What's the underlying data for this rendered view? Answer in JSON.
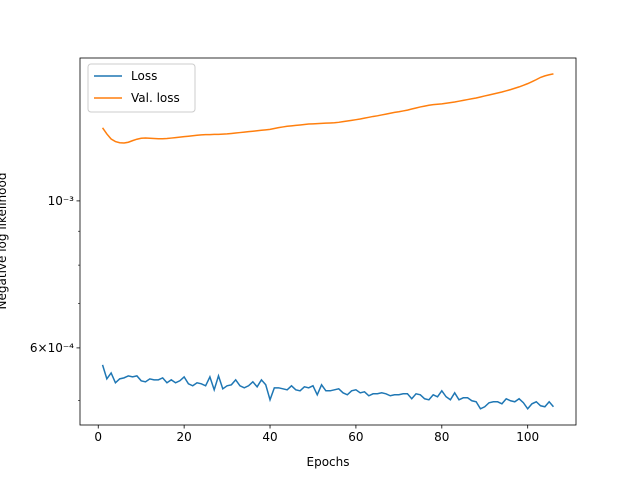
{
  "chart_data": {
    "type": "line",
    "xlabel": "Epochs",
    "ylabel": "Negative log likelihood",
    "x": [
      1,
      2,
      3,
      4,
      5,
      6,
      7,
      8,
      9,
      10,
      11,
      12,
      13,
      14,
      15,
      16,
      17,
      18,
      19,
      20,
      21,
      22,
      23,
      24,
      25,
      26,
      27,
      28,
      29,
      30,
      31,
      32,
      33,
      34,
      35,
      36,
      37,
      38,
      39,
      40,
      41,
      42,
      43,
      44,
      45,
      46,
      47,
      48,
      49,
      50,
      51,
      52,
      53,
      54,
      55,
      56,
      57,
      58,
      59,
      60,
      61,
      62,
      63,
      64,
      65,
      66,
      67,
      68,
      69,
      70,
      71,
      72,
      73,
      74,
      75,
      76,
      77,
      78,
      79,
      80,
      81,
      82,
      83,
      84,
      85,
      86,
      87,
      88,
      89,
      90,
      91,
      92,
      93,
      94,
      95,
      96,
      97,
      98,
      99,
      100,
      101,
      102,
      103,
      104,
      105,
      106
    ],
    "series": [
      {
        "name": "Loss",
        "color": "#1f77b4",
        "values": [
          0.0005657,
          0.0005388,
          0.00055,
          0.0005315,
          0.0005388,
          0.0005407,
          0.0005444,
          0.0005425,
          0.0005444,
          0.0005352,
          0.0005333,
          0.0005388,
          0.000537,
          0.000537,
          0.0005407,
          0.0005315,
          0.000537,
          0.0005315,
          0.0005352,
          0.0005425,
          0.0005296,
          0.000526,
          0.0005315,
          0.0005296,
          0.000526,
          0.0005425,
          0.0005187,
          0.0005444,
          0.0005205,
          0.000526,
          0.0005278,
          0.000537,
          0.000526,
          0.0005223,
          0.000526,
          0.0005333,
          0.0005241,
          0.000537,
          0.0005278,
          0.000501,
          0.0005223,
          0.0005223,
          0.0005205,
          0.0005187,
          0.000526,
          0.0005187,
          0.0005169,
          0.0005241,
          0.0005223,
          0.000526,
          0.0005098,
          0.0005278,
          0.0005169,
          0.0005169,
          0.0005187,
          0.0005205,
          0.0005133,
          0.0005098,
          0.0005169,
          0.0005187,
          0.0005133,
          0.0005151,
          0.0005081,
          0.0005116,
          0.0005116,
          0.0005133,
          0.0005116,
          0.0005081,
          0.0005098,
          0.0005098,
          0.0005116,
          0.0005116,
          0.0005028,
          0.0005116,
          0.0005098,
          0.0005028,
          0.000501,
          0.0005098,
          0.0005063,
          0.0005169,
          0.0005063,
          0.000501,
          0.0005133,
          0.000501,
          0.0005045,
          0.0005045,
          0.0004993,
          0.0004976,
          0.0004856,
          0.000489,
          0.0004959,
          0.0004976,
          0.0004976,
          0.0004941,
          0.0005028,
          0.0004993,
          0.0004976,
          0.0005028,
          0.0004959,
          0.0004856,
          0.0004941,
          0.0004976,
          0.0004907,
          0.000489,
          0.0004976,
          0.000489
        ]
      },
      {
        "name": "Val. loss",
        "color": "#ff7f0e",
        "values": [
          0.001289,
          0.001262,
          0.00124,
          0.001229,
          0.001224,
          0.001223,
          0.001226,
          0.001233,
          0.001239,
          0.001243,
          0.001244,
          0.001243,
          0.001242,
          0.001241,
          0.001241,
          0.001242,
          0.001244,
          0.001246,
          0.001248,
          0.00125,
          0.001252,
          0.001254,
          0.001256,
          0.001258,
          0.001259,
          0.001259,
          0.00126,
          0.00126,
          0.001261,
          0.001262,
          0.001264,
          0.001266,
          0.001268,
          0.00127,
          0.001272,
          0.001274,
          0.001276,
          0.001278,
          0.00128,
          0.001282,
          0.001286,
          0.00129,
          0.001293,
          0.001296,
          0.001298,
          0.0013,
          0.001302,
          0.001304,
          0.001306,
          0.001307,
          0.001308,
          0.001309,
          0.00131,
          0.001311,
          0.001312,
          0.001314,
          0.001317,
          0.00132,
          0.001323,
          0.001326,
          0.001329,
          0.001333,
          0.001337,
          0.001341,
          0.001344,
          0.001348,
          0.001352,
          0.001356,
          0.00136,
          0.001363,
          0.001367,
          0.001371,
          0.001376,
          0.001381,
          0.001386,
          0.00139,
          0.001394,
          0.001397,
          0.001399,
          0.001401,
          0.001404,
          0.001407,
          0.00141,
          0.001414,
          0.001418,
          0.001422,
          0.001426,
          0.00143,
          0.001435,
          0.00144,
          0.001445,
          0.00145,
          0.001455,
          0.00146,
          0.001466,
          0.001472,
          0.001479,
          0.001486,
          0.001494,
          0.001503,
          0.001513,
          0.001524,
          0.001536,
          0.001544,
          0.00155,
          0.001555
        ]
      }
    ],
    "xlim": [
      -4.25,
      111.25
    ],
    "xticks": [
      0,
      20,
      40,
      60,
      80,
      100
    ],
    "ylim": [
      0.000459,
      0.001643
    ],
    "ylog": true,
    "yticks": [
      {
        "value": 0.0006,
        "label": "6×10⁻⁴"
      },
      {
        "value": 0.001,
        "label": "10⁻³"
      }
    ],
    "yminorticks": [
      0.0005,
      0.0007,
      0.0008,
      0.0009
    ],
    "legend": "upper left"
  }
}
